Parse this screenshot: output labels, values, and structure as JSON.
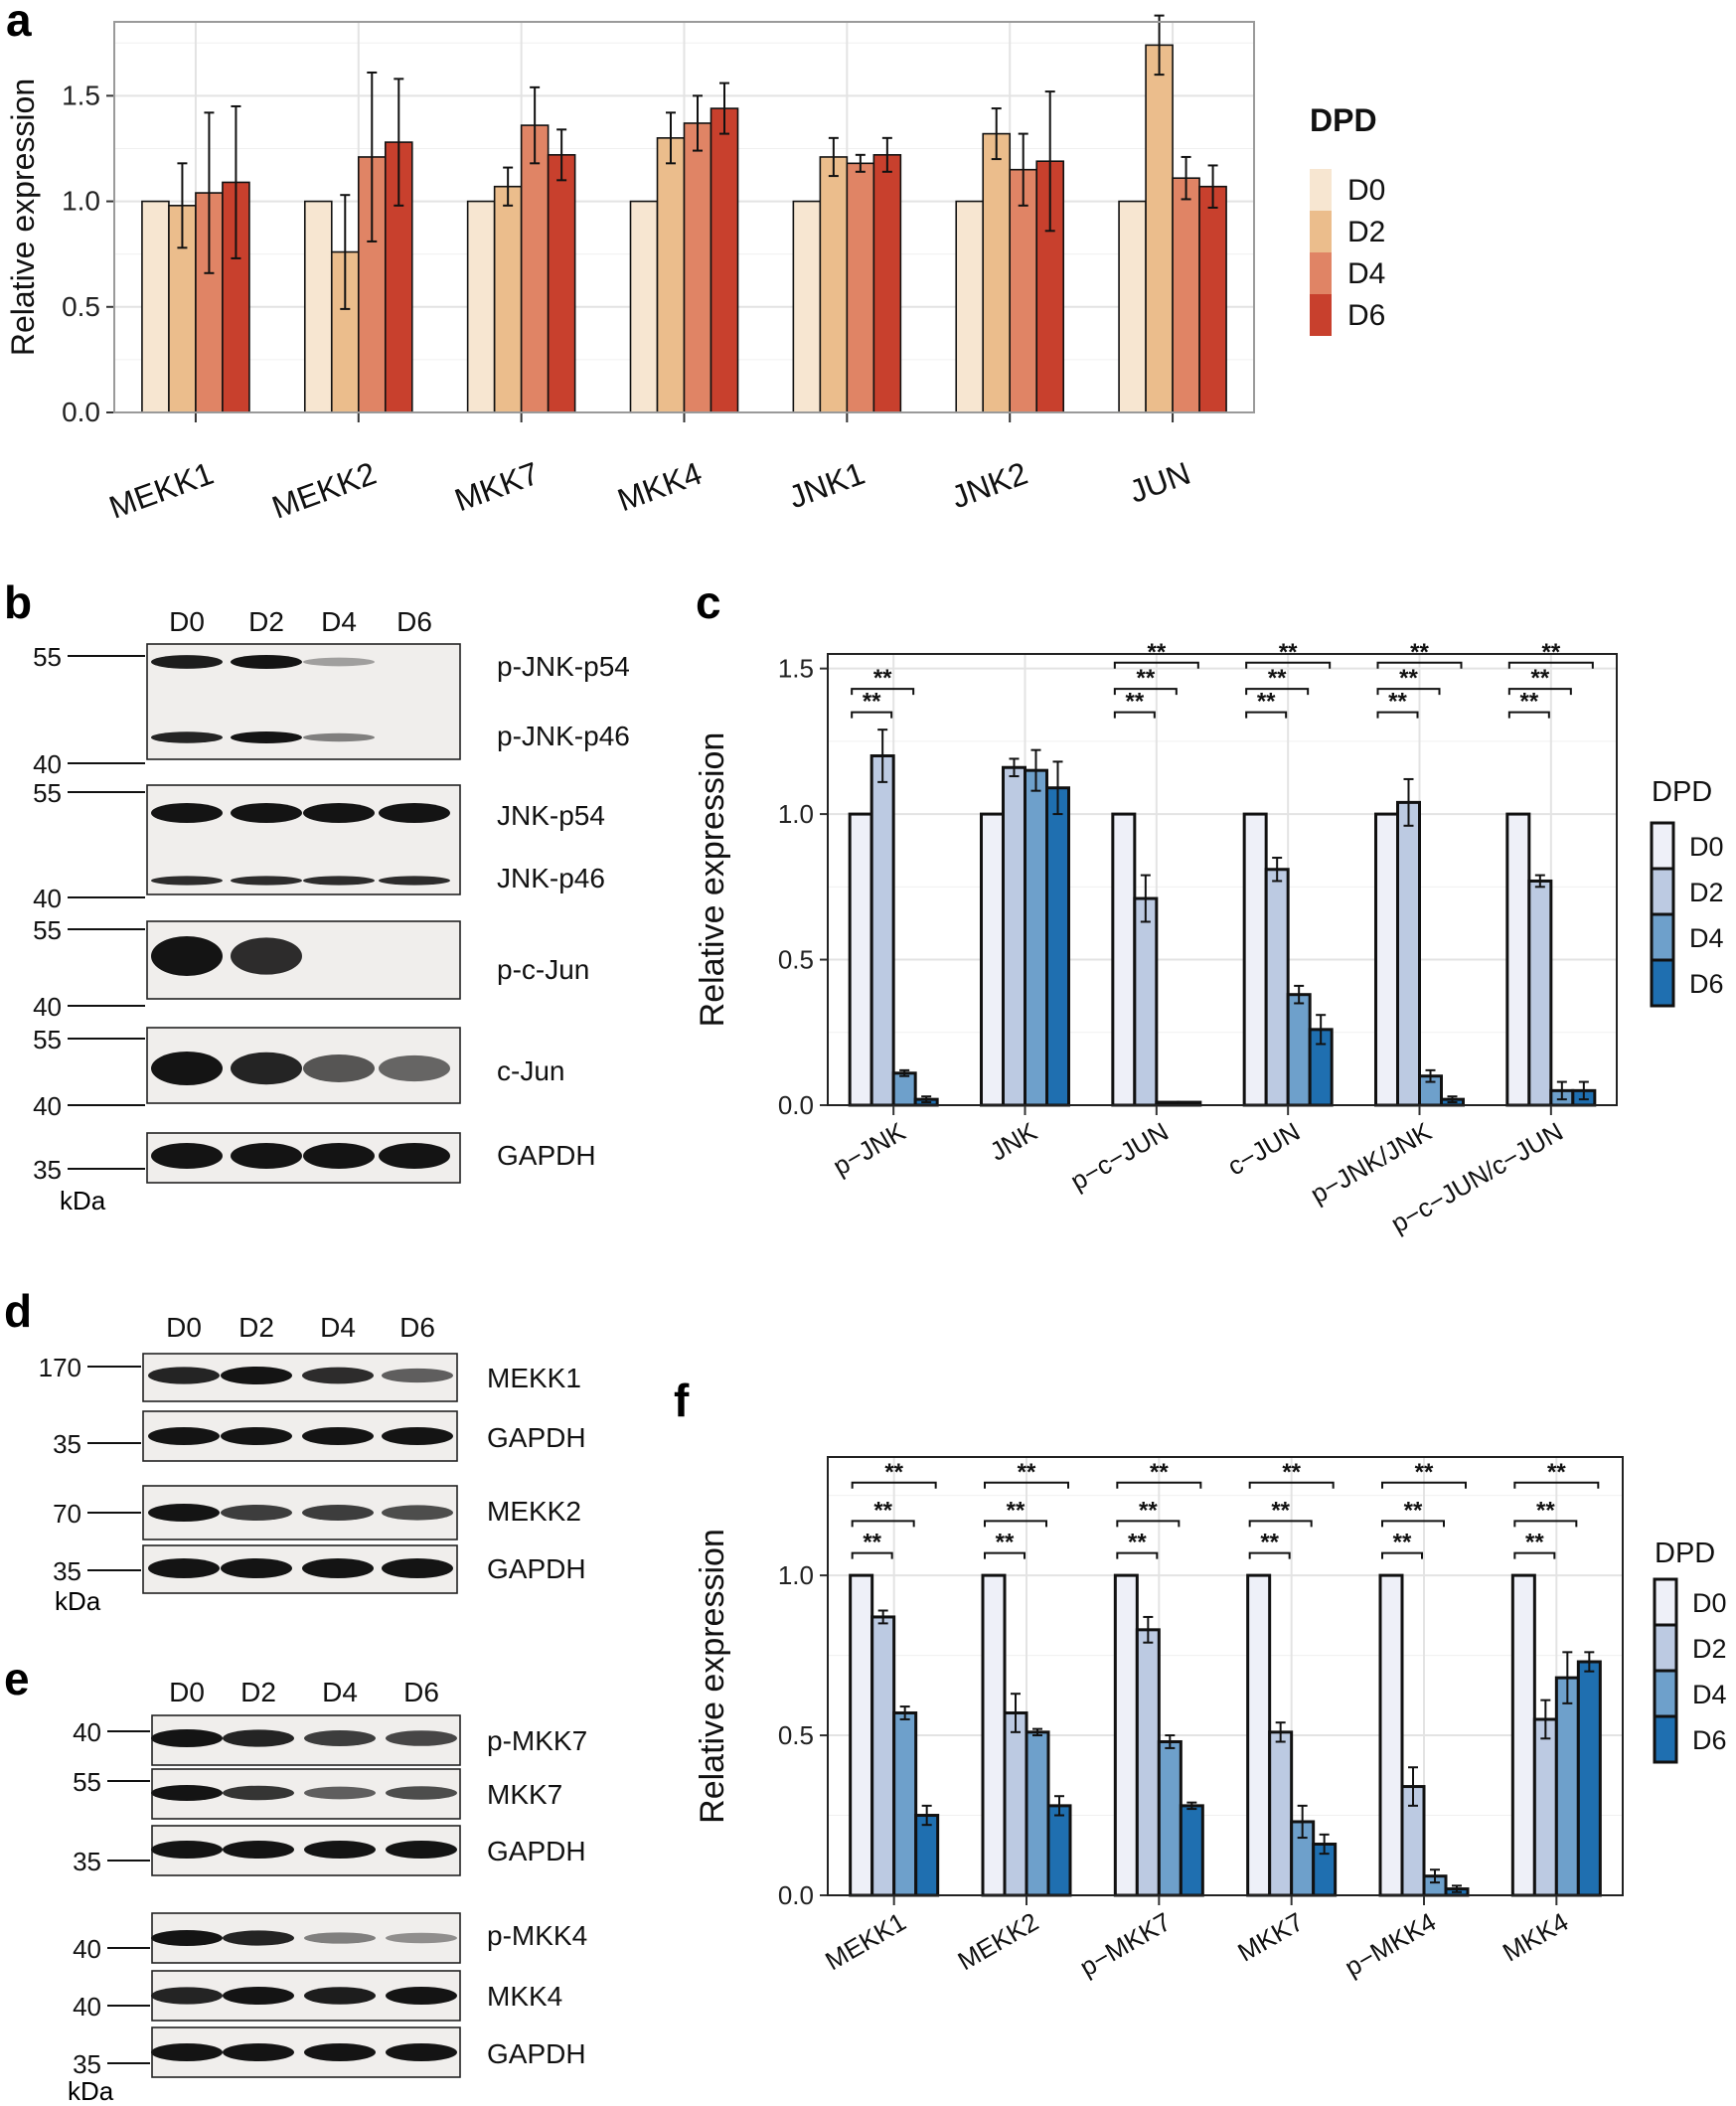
{
  "figure": {
    "panel_labels": [
      "a",
      "b",
      "c",
      "d",
      "e",
      "f"
    ],
    "units_label": "kDa"
  },
  "colors": {
    "reds": [
      "#f7e6d1",
      "#ebbd8c",
      "#e08465",
      "#c8402d"
    ],
    "blues": [
      "#eef0f8",
      "#bccae2",
      "#6ea0cb",
      "#1f6fb0"
    ],
    "blot_bg": "#f0eeec",
    "band": "#141414"
  },
  "chart_data": [
    {
      "panel": "a",
      "type": "bar",
      "title": "",
      "xlabel": "",
      "ylabel": "Relative expression",
      "ylim": [
        0,
        1.85
      ],
      "yticks": [
        0.0,
        0.5,
        1.0,
        1.5
      ],
      "ytick_labels": [
        "0.0",
        "0.5",
        "1.0",
        "1.5"
      ],
      "grid": true,
      "legend_title": "DPD",
      "legend_position": "right",
      "categories": [
        "MEKK1",
        "MEKK2",
        "MKK7",
        "MKK4",
        "JNK1",
        "JNK2",
        "JUN"
      ],
      "series": [
        {
          "name": "D0",
          "values": [
            1.0,
            1.0,
            1.0,
            1.0,
            1.0,
            1.0,
            1.0
          ],
          "errors": [
            0,
            0,
            0,
            0,
            0,
            0,
            0
          ]
        },
        {
          "name": "D2",
          "values": [
            0.98,
            0.76,
            1.07,
            1.3,
            1.21,
            1.32,
            1.74
          ],
          "errors": [
            0.2,
            0.27,
            0.09,
            0.12,
            0.09,
            0.12,
            0.14
          ]
        },
        {
          "name": "D4",
          "values": [
            1.04,
            1.21,
            1.36,
            1.37,
            1.18,
            1.15,
            1.11
          ],
          "errors": [
            0.38,
            0.4,
            0.18,
            0.13,
            0.04,
            0.17,
            0.1
          ]
        },
        {
          "name": "D6",
          "values": [
            1.09,
            1.28,
            1.22,
            1.44,
            1.22,
            1.19,
            1.07
          ],
          "errors": [
            0.36,
            0.3,
            0.12,
            0.12,
            0.08,
            0.33,
            0.1
          ]
        }
      ]
    },
    {
      "panel": "c",
      "type": "bar",
      "title": "",
      "xlabel": "",
      "ylabel": "Relative expression",
      "ylim": [
        0,
        1.55
      ],
      "yticks": [
        0.0,
        0.5,
        1.0,
        1.5
      ],
      "ytick_labels": [
        "0.0",
        "0.5",
        "1.0",
        "1.5"
      ],
      "grid": true,
      "legend_title": "DPD",
      "legend_position": "right",
      "categories": [
        "p−JNK",
        "JNK",
        "p−c−JUN",
        "c−JUN",
        "p−JNK/JNK",
        "p−c−JUN/c−JUN"
      ],
      "series": [
        {
          "name": "D0",
          "values": [
            1.0,
            1.0,
            1.0,
            1.0,
            1.0,
            1.0
          ],
          "errors": [
            0,
            0,
            0,
            0,
            0,
            0
          ]
        },
        {
          "name": "D2",
          "values": [
            1.2,
            1.16,
            0.71,
            0.81,
            1.04,
            0.77
          ],
          "errors": [
            0.09,
            0.03,
            0.08,
            0.04,
            0.08,
            0.02
          ]
        },
        {
          "name": "D4",
          "values": [
            0.11,
            1.15,
            0.01,
            0.38,
            0.1,
            0.05
          ],
          "errors": [
            0.01,
            0.07,
            0.0,
            0.03,
            0.02,
            0.03
          ]
        },
        {
          "name": "D6",
          "values": [
            0.02,
            1.09,
            0.01,
            0.26,
            0.02,
            0.05
          ],
          "errors": [
            0.01,
            0.09,
            0.0,
            0.05,
            0.01,
            0.03
          ]
        }
      ],
      "significance": [
        {
          "group": 0,
          "label": "**",
          "pairs": [
            [
              "D0",
              "D2"
            ],
            [
              "D0",
              "D4"
            ]
          ]
        },
        {
          "group": 2,
          "label": "**",
          "pairs": [
            [
              "D0",
              "D2"
            ],
            [
              "D0",
              "D4"
            ],
            [
              "D0",
              "D6"
            ]
          ]
        },
        {
          "group": 3,
          "label": "**",
          "pairs": [
            [
              "D0",
              "D2"
            ],
            [
              "D0",
              "D4"
            ],
            [
              "D0",
              "D6"
            ]
          ]
        },
        {
          "group": 4,
          "label": "**",
          "pairs": [
            [
              "D0",
              "D2"
            ],
            [
              "D0",
              "D4"
            ],
            [
              "D0",
              "D6"
            ]
          ]
        },
        {
          "group": 5,
          "label": "**",
          "pairs": [
            [
              "D0",
              "D2"
            ],
            [
              "D0",
              "D4"
            ],
            [
              "D0",
              "D6"
            ]
          ]
        }
      ]
    },
    {
      "panel": "f",
      "type": "bar",
      "title": "",
      "xlabel": "",
      "ylabel": "Relative expression",
      "ylim": [
        0,
        1.37
      ],
      "yticks": [
        0.0,
        0.5,
        1.0
      ],
      "ytick_labels": [
        "0.0",
        "0.5",
        "1.0"
      ],
      "grid": true,
      "legend_title": "DPD",
      "legend_position": "right",
      "categories": [
        "MEKK1",
        "MEKK2",
        "p−MKK7",
        "MKK7",
        "p−MKK4",
        "MKK4"
      ],
      "series": [
        {
          "name": "D0",
          "values": [
            1.0,
            1.0,
            1.0,
            1.0,
            1.0,
            1.0
          ],
          "errors": [
            0,
            0,
            0,
            0,
            0,
            0
          ]
        },
        {
          "name": "D2",
          "values": [
            0.87,
            0.57,
            0.83,
            0.51,
            0.34,
            0.55
          ],
          "errors": [
            0.02,
            0.06,
            0.04,
            0.03,
            0.06,
            0.06
          ]
        },
        {
          "name": "D4",
          "values": [
            0.57,
            0.51,
            0.48,
            0.23,
            0.06,
            0.68
          ],
          "errors": [
            0.02,
            0.01,
            0.02,
            0.05,
            0.02,
            0.08
          ]
        },
        {
          "name": "D6",
          "values": [
            0.25,
            0.28,
            0.28,
            0.16,
            0.02,
            0.73
          ],
          "errors": [
            0.03,
            0.03,
            0.01,
            0.03,
            0.01,
            0.03
          ]
        }
      ],
      "significance": [
        {
          "group": 0,
          "label": "**",
          "pairs": [
            [
              "D0",
              "D2"
            ],
            [
              "D0",
              "D4"
            ],
            [
              "D0",
              "D6"
            ]
          ]
        },
        {
          "group": 1,
          "label": "**",
          "pairs": [
            [
              "D0",
              "D2"
            ],
            [
              "D0",
              "D4"
            ],
            [
              "D0",
              "D6"
            ]
          ]
        },
        {
          "group": 2,
          "label": "**",
          "pairs": [
            [
              "D0",
              "D2"
            ],
            [
              "D0",
              "D4"
            ],
            [
              "D0",
              "D6"
            ]
          ]
        },
        {
          "group": 3,
          "label": "**",
          "pairs": [
            [
              "D0",
              "D2"
            ],
            [
              "D0",
              "D4"
            ],
            [
              "D0",
              "D6"
            ]
          ]
        },
        {
          "group": 4,
          "label": "**",
          "pairs": [
            [
              "D0",
              "D2"
            ],
            [
              "D0",
              "D4"
            ],
            [
              "D0",
              "D6"
            ]
          ]
        },
        {
          "group": 5,
          "label": "**",
          "pairs": [
            [
              "D0",
              "D2"
            ],
            [
              "D0",
              "D4"
            ],
            [
              "D0",
              "D6"
            ]
          ]
        }
      ]
    }
  ],
  "blots": [
    {
      "panel": "b",
      "lanes": [
        "D0",
        "D2",
        "D4",
        "D6"
      ],
      "strips": [
        {
          "labels": [
            "p-JNK-p54",
            "p-JNK-p46"
          ],
          "markers": [
            "55",
            "40"
          ],
          "bands": [
            [
              0.95,
              1.0,
              0.15,
              0.0
            ],
            [
              0.9,
              1.0,
              0.35,
              0.0
            ]
          ]
        },
        {
          "labels": [
            "JNK-p54",
            "JNK-p46"
          ],
          "markers": [
            "55",
            "40"
          ],
          "bands": [
            [
              1.0,
              1.0,
              1.0,
              1.0
            ],
            [
              0.85,
              0.85,
              0.85,
              0.85
            ]
          ]
        },
        {
          "labels": [
            "p-c-Jun"
          ],
          "markers": [
            "55",
            "40"
          ],
          "bands": [
            [
              1.0,
              0.85,
              0.0,
              0.0
            ]
          ]
        },
        {
          "labels": [
            "c-Jun"
          ],
          "markers": [
            "55",
            "40"
          ],
          "bands": [
            [
              1.0,
              0.9,
              0.6,
              0.5
            ]
          ]
        },
        {
          "labels": [
            "GAPDH"
          ],
          "markers": [
            "35"
          ],
          "bands": [
            [
              1.0,
              1.0,
              1.0,
              1.0
            ]
          ]
        }
      ]
    },
    {
      "panel": "d",
      "lanes": [
        "D0",
        "D2",
        "D4",
        "D6"
      ],
      "strips": [
        {
          "labels": [
            "MEKK1"
          ],
          "markers": [
            "170"
          ],
          "bands": [
            [
              0.9,
              1.0,
              0.85,
              0.55
            ]
          ]
        },
        {
          "labels": [
            "GAPDH"
          ],
          "markers": [
            "35"
          ],
          "bands": [
            [
              1.0,
              1.0,
              1.0,
              1.0
            ]
          ]
        },
        {
          "labels": [
            "MEKK2"
          ],
          "markers": [
            "70"
          ],
          "bands": [
            [
              1.0,
              0.75,
              0.75,
              0.65
            ]
          ]
        },
        {
          "labels": [
            "GAPDH"
          ],
          "markers": [
            "35"
          ],
          "bands": [
            [
              1.0,
              1.0,
              1.0,
              1.0
            ]
          ]
        }
      ]
    },
    {
      "panel": "e",
      "lanes": [
        "D0",
        "D2",
        "D4",
        "D6"
      ],
      "strips": [
        {
          "labels": [
            "p-MKK7"
          ],
          "markers": [
            "40"
          ],
          "bands": [
            [
              1.0,
              0.9,
              0.75,
              0.7
            ]
          ]
        },
        {
          "labels": [
            "MKK7"
          ],
          "markers": [
            "55"
          ],
          "bands": [
            [
              1.0,
              0.8,
              0.55,
              0.65
            ]
          ]
        },
        {
          "labels": [
            "GAPDH"
          ],
          "markers": [
            "35"
          ],
          "bands": [
            [
              1.0,
              1.0,
              1.0,
              1.0
            ]
          ]
        },
        {
          "labels": [
            "p-MKK4"
          ],
          "markers": [
            "40"
          ],
          "bands": [
            [
              1.0,
              0.9,
              0.35,
              0.25
            ]
          ]
        },
        {
          "labels": [
            "MKK4"
          ],
          "markers": [
            "40"
          ],
          "bands": [
            [
              0.9,
              1.0,
              0.95,
              1.0
            ]
          ]
        },
        {
          "labels": [
            "GAPDH"
          ],
          "markers": [
            "35"
          ],
          "bands": [
            [
              1.0,
              1.0,
              1.0,
              1.0
            ]
          ]
        }
      ]
    }
  ]
}
